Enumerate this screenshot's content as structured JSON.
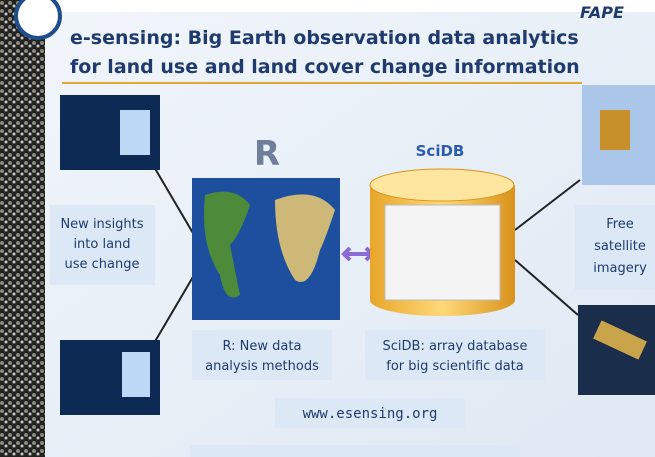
{
  "header": {
    "logo_text": "FAPE",
    "title_lines": [
      "e-sensing: Big Earth observation data analytics",
      "for land use and land cover change information"
    ]
  },
  "logos": {
    "r": "R",
    "scidb": "SciDB"
  },
  "boxes": {
    "insights": [
      "New insights",
      "into land",
      "use change"
    ],
    "r_methods": [
      "R: New data",
      "analysis methods"
    ],
    "scidb": [
      "SciDB: array database",
      "for big scientific data"
    ],
    "satellite": [
      "Free",
      "satellite",
      "imagery"
    ]
  },
  "footer": {
    "url": "www.esensing.org"
  }
}
